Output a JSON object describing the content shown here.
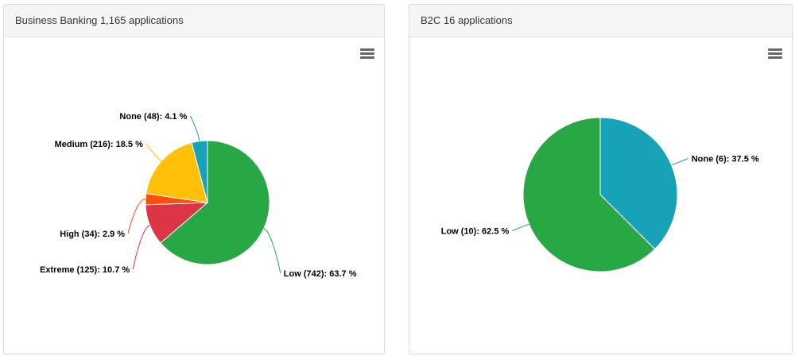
{
  "panels": [
    {
      "title": "Business Banking 1,165 applications"
    },
    {
      "title": "B2C 16 applications"
    }
  ],
  "chart_data": [
    {
      "type": "pie",
      "title": "Business Banking 1,165 applications",
      "slices": [
        {
          "name": "Low",
          "count": 742,
          "percent": 63.7,
          "color": "#28a745"
        },
        {
          "name": "Extreme",
          "count": 125,
          "percent": 10.7,
          "color": "#dc3545"
        },
        {
          "name": "High",
          "count": 34,
          "percent": 2.9,
          "color": "#fd4e0b"
        },
        {
          "name": "Medium",
          "count": 216,
          "percent": 18.5,
          "color": "#ffc107"
        },
        {
          "name": "None",
          "count": 48,
          "percent": 4.1,
          "color": "#17a2b8"
        }
      ]
    },
    {
      "type": "pie",
      "title": "B2C 16 applications",
      "slices": [
        {
          "name": "None",
          "count": 6,
          "percent": 37.5,
          "color": "#17a2b8"
        },
        {
          "name": "Low",
          "count": 10,
          "percent": 62.5,
          "color": "#28a745"
        }
      ]
    }
  ],
  "icons": {
    "menu": "hamburger-menu-icon"
  }
}
